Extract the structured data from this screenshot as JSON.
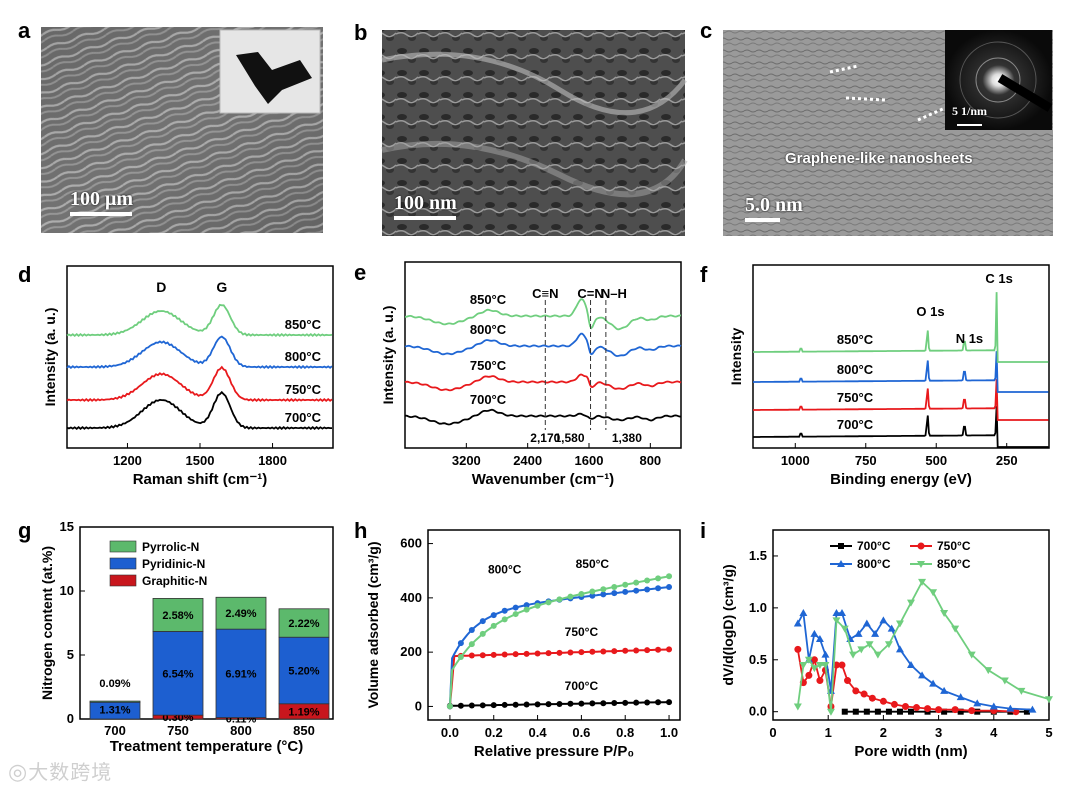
{
  "panel_labels": [
    "a",
    "b",
    "c",
    "d",
    "e",
    "f",
    "g",
    "h",
    "i"
  ],
  "images": {
    "a": {
      "scale_bar": "100 μm",
      "inset": "black fibrous membrane photo"
    },
    "b": {
      "scale_bar": "100 nm"
    },
    "c": {
      "scale_bar": "5.0 nm",
      "annotation": "Graphene-like nanosheets",
      "inset_scale": "5 1/nm"
    }
  },
  "watermark": "大数跨境",
  "colors": {
    "c700": "#000000",
    "c750": "#e8191c",
    "c800": "#1f66d4",
    "c850": "#6fce7e",
    "graphitic": "#c8161d",
    "pyridinic": "#1d5fd0",
    "pyrrolic": "#5cb96c"
  },
  "chart_data": [
    {
      "id": "d",
      "type": "line",
      "xlabel": "Raman shift (cm⁻¹)",
      "ylabel": "Intensity (a. u.)",
      "xlim": [
        950,
        2050
      ],
      "xticks": [
        "1200",
        "1500",
        "1800"
      ],
      "xtick_values": [
        1200,
        1500,
        1800
      ],
      "peaks": [
        {
          "label": "D",
          "x": 1340
        },
        {
          "label": "G",
          "x": 1590
        }
      ],
      "series": [
        {
          "name": "700°C",
          "offset": 0,
          "d_amp": 28,
          "g_amp": 35
        },
        {
          "name": "750°C",
          "offset": 1,
          "d_amp": 26,
          "g_amp": 32
        },
        {
          "name": "800°C",
          "offset": 2,
          "d_amp": 25,
          "g_amp": 30
        },
        {
          "name": "850°C",
          "offset": 3,
          "d_amp": 24,
          "g_amp": 30
        }
      ]
    },
    {
      "id": "e",
      "type": "line",
      "xlabel": "Wavenumber (cm⁻¹)",
      "ylabel": "Intensity (a. u.)",
      "xlim": [
        4000,
        400
      ],
      "xticks": [
        "3200",
        "2400",
        "1600",
        "800"
      ],
      "xtick_values": [
        3200,
        2400,
        1600,
        800
      ],
      "bond_labels": [
        {
          "label": "C≡N",
          "x": 2170
        },
        {
          "label": "C=N",
          "x": 1580
        },
        {
          "label": "N–H",
          "x": 1380
        }
      ],
      "dashed_lines": [
        {
          "label": "2,170",
          "x": 2170
        },
        {
          "label": "1,580",
          "x": 1580
        },
        {
          "label": "1,380",
          "x": 1380
        }
      ],
      "series": [
        {
          "name": "700°C"
        },
        {
          "name": "750°C"
        },
        {
          "name": "800°C"
        },
        {
          "name": "850°C"
        }
      ]
    },
    {
      "id": "f",
      "type": "line",
      "xlabel": "Binding energy (eV)",
      "ylabel": "Intensity",
      "xlim": [
        1150,
        100
      ],
      "xticks": [
        "1000",
        "750",
        "500",
        "250"
      ],
      "xtick_values": [
        1000,
        750,
        500,
        250
      ],
      "peaks": [
        {
          "label": "O 1s",
          "x": 531
        },
        {
          "label": "N 1s",
          "x": 400
        },
        {
          "label": "C 1s",
          "x": 284
        }
      ],
      "series": [
        {
          "name": "700°C"
        },
        {
          "name": "750°C"
        },
        {
          "name": "800°C"
        },
        {
          "name": "850°C"
        }
      ]
    },
    {
      "id": "g",
      "type": "bar",
      "xlabel": "Treatment temperature (°C)",
      "ylabel": "Nitrogen content (at.%)",
      "ylim": [
        0,
        15
      ],
      "yticks": [
        "0",
        "5",
        "10",
        "15"
      ],
      "ytick_values": [
        0,
        5,
        10,
        15
      ],
      "categories": [
        "700",
        "750",
        "800",
        "850"
      ],
      "legend": [
        "Pyrrolic-N",
        "Pyridinic-N",
        "Graphitic-N"
      ],
      "series": [
        {
          "name": "Graphitic-N",
          "values": [
            0.0,
            0.3,
            0.11,
            1.19
          ],
          "labels": [
            "",
            "0.30%",
            "0.11%",
            "1.19%"
          ]
        },
        {
          "name": "Pyridinic-N",
          "values": [
            1.31,
            6.54,
            6.91,
            5.2
          ],
          "labels": [
            "1.31%",
            "6.54%",
            "6.91%",
            "5.20%"
          ]
        },
        {
          "name": "Pyrrolic-N",
          "values": [
            0.09,
            2.58,
            2.49,
            2.22
          ],
          "labels": [
            "0.09%",
            "2.58%",
            "2.49%",
            "2.22%"
          ]
        }
      ]
    },
    {
      "id": "h",
      "type": "line",
      "xlabel": "Relative pressure P/P₀",
      "ylabel": "Volume adsorbed (cm³/g)",
      "xlim": [
        -0.1,
        1.05
      ],
      "ylim": [
        -50,
        650
      ],
      "xticks": [
        "0.0",
        "0.2",
        "0.4",
        "0.6",
        "0.8",
        "1.0"
      ],
      "xtick_values": [
        0,
        0.2,
        0.4,
        0.6,
        0.8,
        1.0
      ],
      "yticks": [
        "0",
        "200",
        "400",
        "600"
      ],
      "ytick_values": [
        0,
        200,
        400,
        600
      ],
      "series": [
        {
          "name": "700°C",
          "label_pos": [
            0.6,
            60
          ]
        },
        {
          "name": "750°C",
          "label_pos": [
            0.6,
            260
          ]
        },
        {
          "name": "800°C",
          "label_pos": [
            0.25,
            490
          ]
        },
        {
          "name": "850°C",
          "label_pos": [
            0.65,
            510
          ]
        }
      ]
    },
    {
      "id": "i",
      "type": "line",
      "xlabel": "Pore width (nm)",
      "ylabel": "dV/d(logD) (cm³/g)",
      "xlim": [
        0,
        5
      ],
      "ylim": [
        -0.08,
        1.75
      ],
      "xticks": [
        "0",
        "1",
        "2",
        "3",
        "4",
        "5"
      ],
      "xtick_values": [
        0,
        1,
        2,
        3,
        4,
        5
      ],
      "yticks": [
        "0.0",
        "0.5",
        "1.0",
        "1.5"
      ],
      "ytick_values": [
        0,
        0.5,
        1.0,
        1.5
      ],
      "legend": [
        "700°C",
        "750°C",
        "800°C",
        "850°C"
      ],
      "series": [
        {
          "name": "700°C",
          "x": [
            1.3,
            1.5,
            1.7,
            1.9,
            2.1,
            2.3,
            2.5,
            2.8,
            3.1,
            3.4,
            3.7,
            4.0,
            4.3,
            4.6
          ],
          "y": [
            0.0,
            0.0,
            0.0,
            0.0,
            0.0,
            0.0,
            0.0,
            0.0,
            0.0,
            0.0,
            0.0,
            0.0,
            0.0,
            0.0
          ]
        },
        {
          "name": "750°C",
          "x": [
            0.45,
            0.55,
            0.65,
            0.75,
            0.85,
            0.95,
            1.05,
            1.15,
            1.25,
            1.35,
            1.5,
            1.65,
            1.8,
            2.0,
            2.2,
            2.4,
            2.6,
            2.8,
            3.0,
            3.3,
            3.6,
            4.0,
            4.4
          ],
          "y": [
            0.6,
            0.28,
            0.35,
            0.5,
            0.3,
            0.4,
            0.05,
            0.45,
            0.45,
            0.3,
            0.2,
            0.17,
            0.13,
            0.1,
            0.07,
            0.05,
            0.04,
            0.03,
            0.02,
            0.02,
            0.01,
            0.01,
            0.0
          ]
        },
        {
          "name": "800°C",
          "x": [
            0.45,
            0.55,
            0.65,
            0.75,
            0.85,
            0.95,
            1.05,
            1.15,
            1.25,
            1.4,
            1.55,
            1.7,
            1.85,
            2.0,
            2.15,
            2.3,
            2.5,
            2.7,
            2.9,
            3.1,
            3.4,
            3.7,
            4.0,
            4.3,
            4.7
          ],
          "y": [
            0.85,
            0.95,
            0.5,
            0.75,
            0.7,
            0.55,
            0.2,
            0.95,
            0.95,
            0.7,
            0.75,
            0.85,
            0.75,
            0.88,
            0.8,
            0.6,
            0.45,
            0.35,
            0.27,
            0.2,
            0.14,
            0.08,
            0.05,
            0.03,
            0.02
          ]
        },
        {
          "name": "850°C",
          "x": [
            0.45,
            0.55,
            0.65,
            0.75,
            0.85,
            0.95,
            1.05,
            1.15,
            1.3,
            1.45,
            1.6,
            1.75,
            1.9,
            2.1,
            2.3,
            2.5,
            2.7,
            2.9,
            3.1,
            3.3,
            3.6,
            3.9,
            4.2,
            4.5,
            5.0
          ],
          "y": [
            0.05,
            0.45,
            0.5,
            0.42,
            0.45,
            0.45,
            0.0,
            0.88,
            0.8,
            0.55,
            0.6,
            0.65,
            0.55,
            0.65,
            0.85,
            1.05,
            1.25,
            1.15,
            0.95,
            0.8,
            0.55,
            0.4,
            0.3,
            0.2,
            0.12
          ]
        }
      ]
    }
  ]
}
